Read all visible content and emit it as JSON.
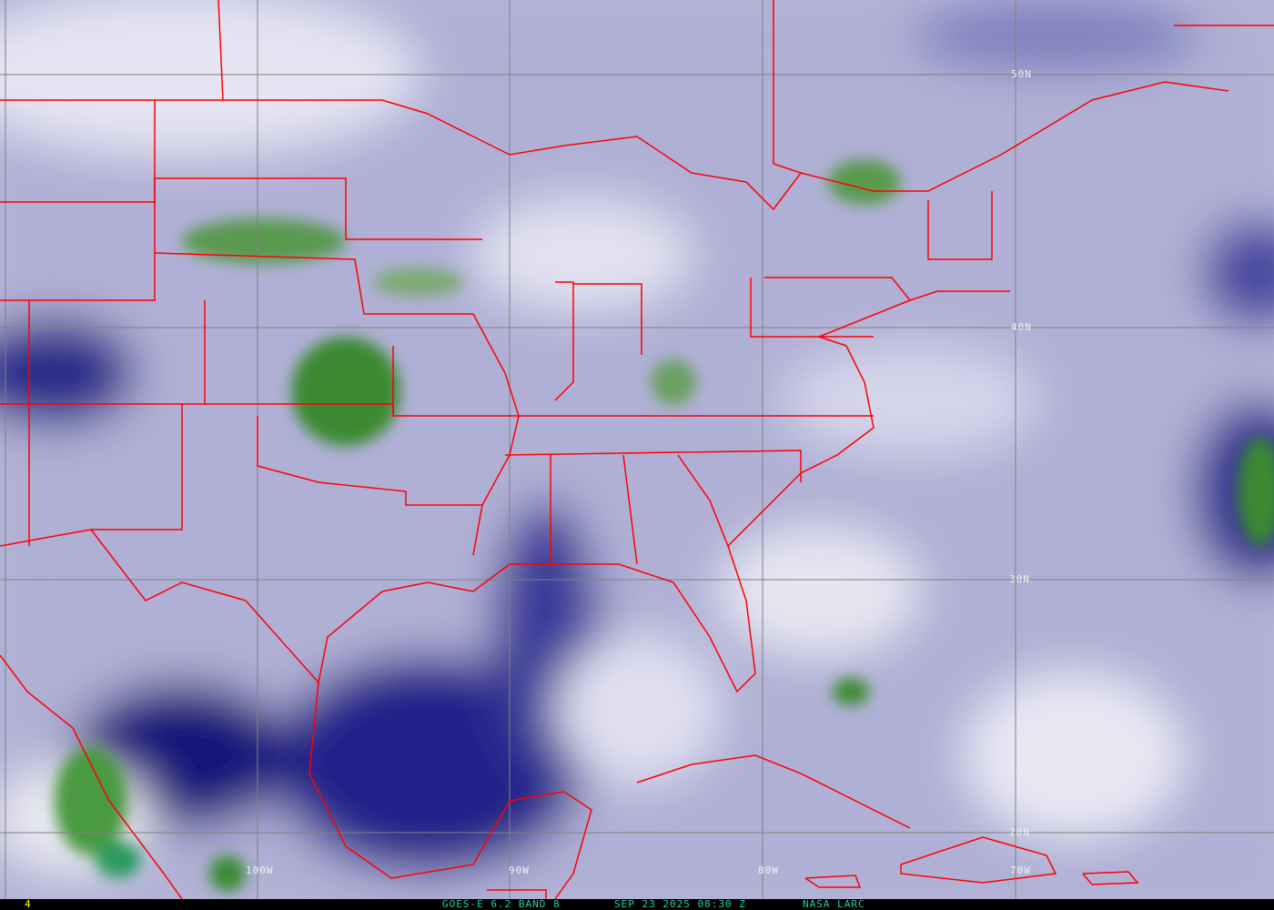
{
  "frame_number": "4",
  "caption": {
    "satellite": "GOES-E 6.2 BAND 8",
    "timestamp": "SEP 23 2025 08:30 Z",
    "source": "NASA LARC"
  },
  "grid_labels": {
    "lat": [
      "50N",
      "40N",
      "30N",
      "20N"
    ],
    "lon": [
      "100W",
      "90W",
      "80W",
      "70W"
    ]
  },
  "colors": {
    "border": "#ff0000",
    "grid": "#808080",
    "caption_text": "#20d0a0",
    "frame_text": "#ffff00",
    "dry": "#1a1a80",
    "moist": "#f0f0f8",
    "cold_cloud": "#3a8a30"
  }
}
